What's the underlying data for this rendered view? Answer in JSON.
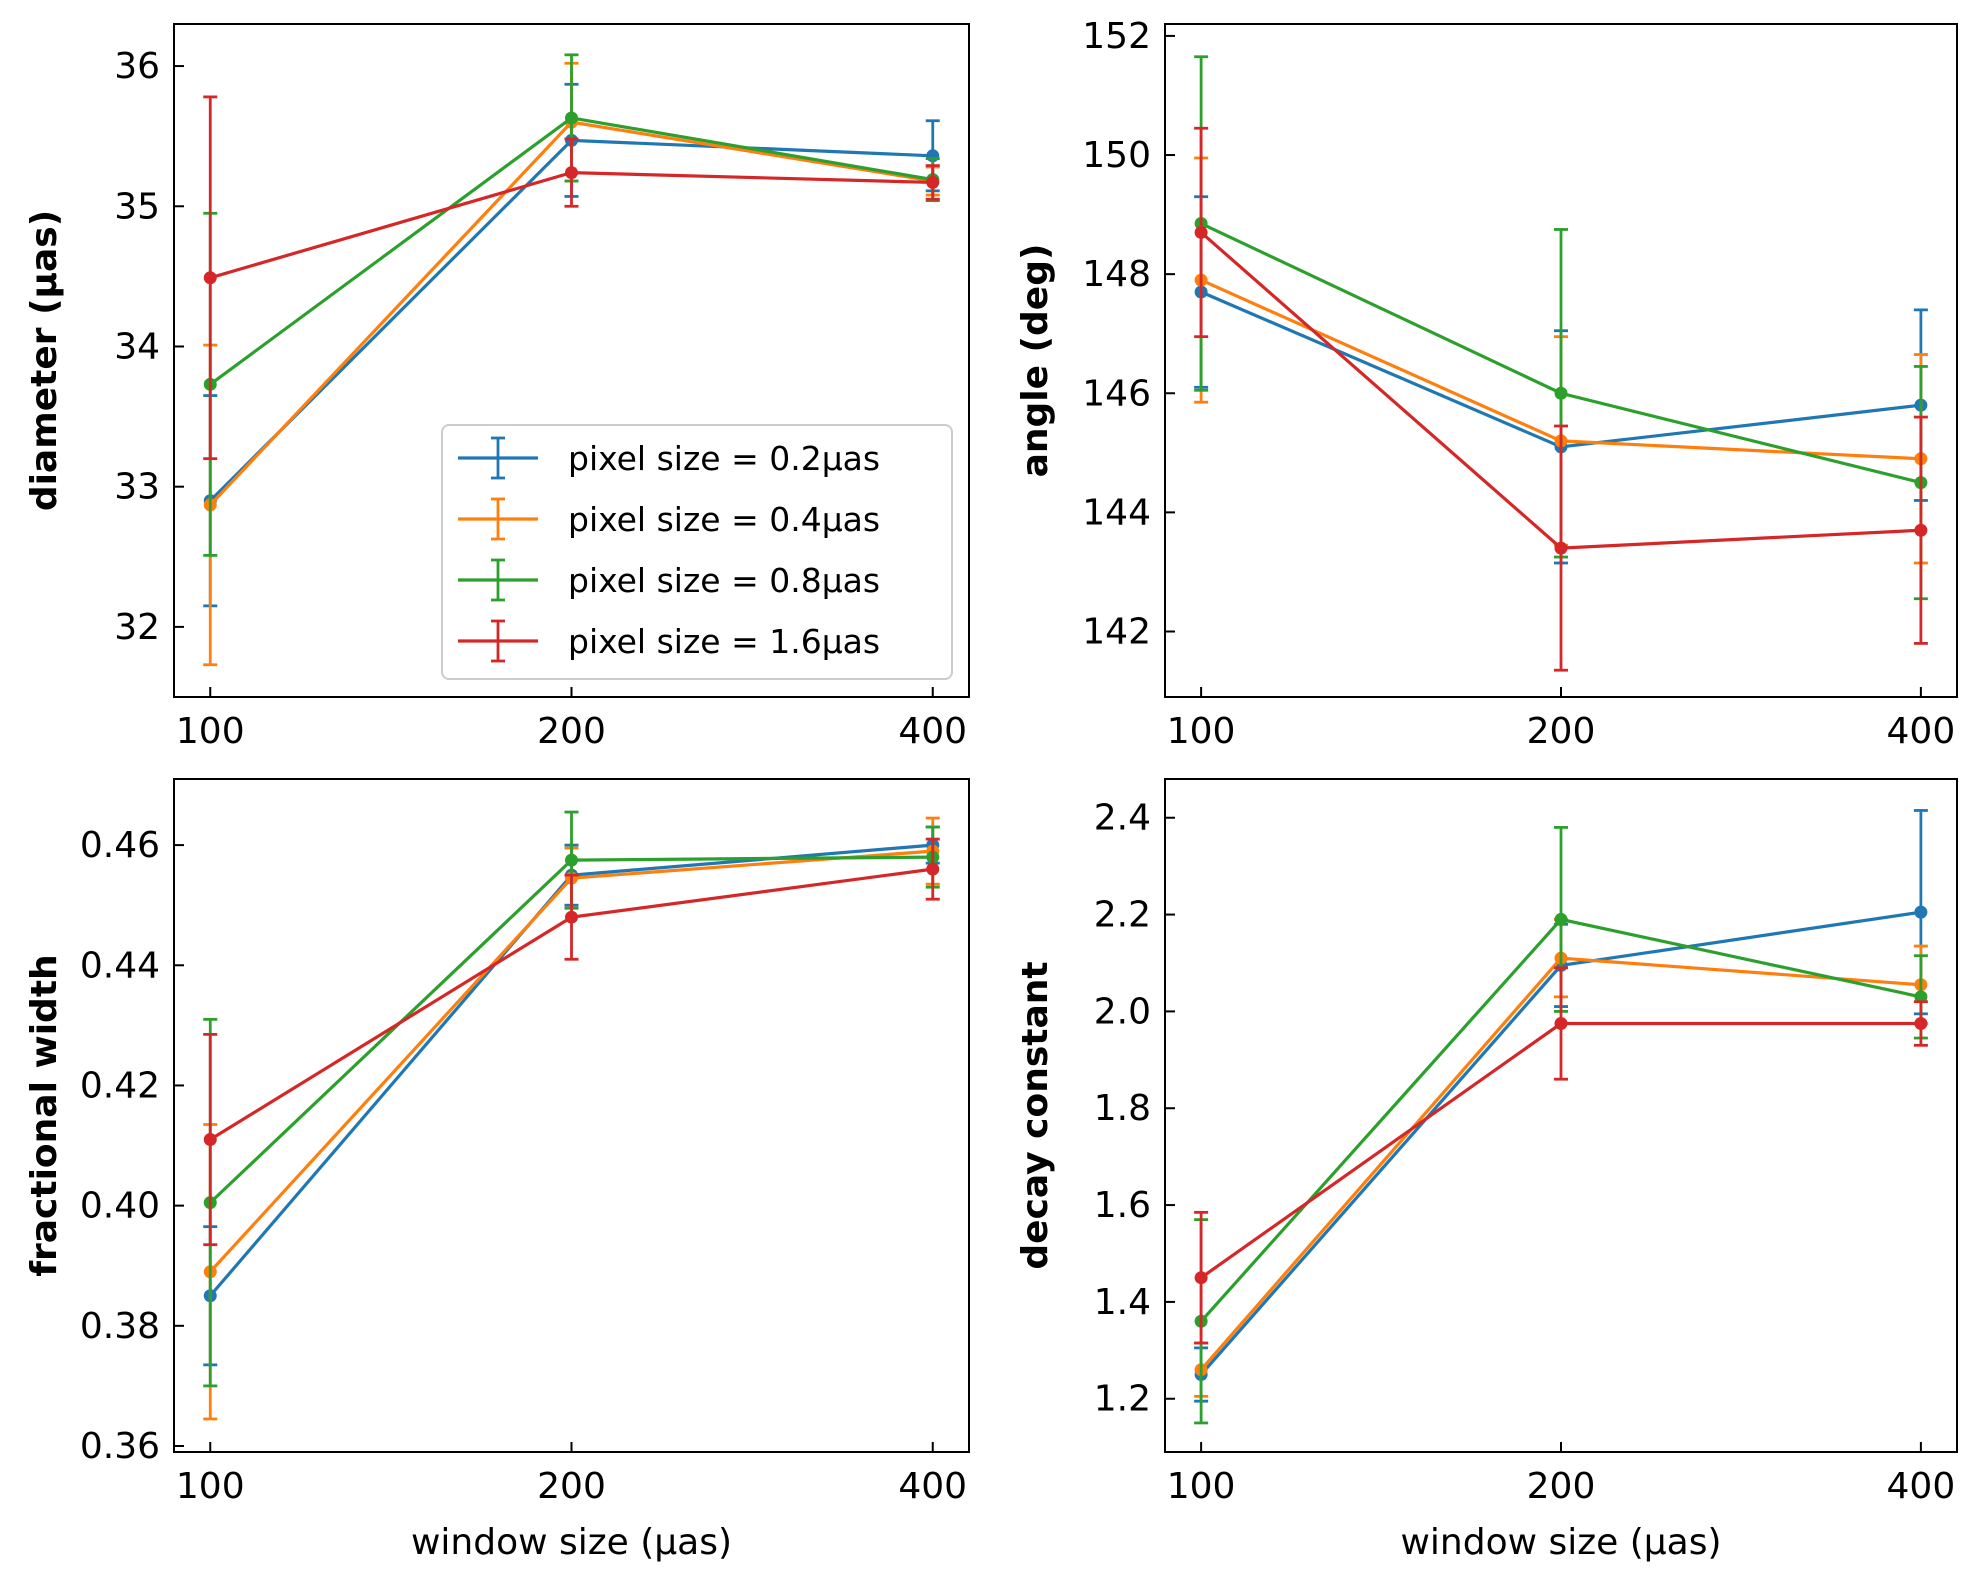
{
  "chart_data": [
    {
      "type": "line",
      "panel": "top-left",
      "ylabel": "diameter (μas)",
      "xlabel": "",
      "categories": [
        "100",
        "200",
        "400"
      ],
      "ylim": [
        31.5,
        36.3
      ],
      "yticks": [
        32,
        33,
        34,
        35,
        36
      ],
      "ytick_labels": [
        "32",
        "33",
        "34",
        "35",
        "36"
      ],
      "grid": false,
      "legend": "lower-right",
      "series": [
        {
          "name": "pixel size = 0.2μas",
          "color": "#1f77b4",
          "values": [
            32.9,
            35.47,
            35.36
          ],
          "errors": [
            0.75,
            0.4,
            0.25
          ]
        },
        {
          "name": "pixel size = 0.4μas",
          "color": "#ff7f0e",
          "values": [
            32.87,
            35.6,
            35.18
          ],
          "errors": [
            1.14,
            0.42,
            0.1
          ]
        },
        {
          "name": "pixel size = 0.8μas",
          "color": "#2ca02c",
          "values": [
            33.73,
            35.63,
            35.19
          ],
          "errors": [
            1.22,
            0.45,
            0.15
          ]
        },
        {
          "name": "pixel size = 1.6μas",
          "color": "#d62728",
          "values": [
            34.49,
            35.24,
            35.17
          ],
          "errors": [
            1.29,
            0.24,
            0.12
          ]
        }
      ]
    },
    {
      "type": "line",
      "panel": "top-right",
      "ylabel": "angle (deg)",
      "xlabel": "",
      "categories": [
        "100",
        "200",
        "400"
      ],
      "ylim": [
        140.9,
        152.2
      ],
      "yticks": [
        142,
        144,
        146,
        148,
        150,
        152
      ],
      "ytick_labels": [
        "142",
        "144",
        "146",
        "148",
        "150",
        "152"
      ],
      "grid": false,
      "series": [
        {
          "name": "pixel size = 0.2μas",
          "color": "#1f77b4",
          "values": [
            147.7,
            145.1,
            145.8
          ],
          "errors": [
            1.6,
            1.95,
            1.6
          ]
        },
        {
          "name": "pixel size = 0.4μas",
          "color": "#ff7f0e",
          "values": [
            147.9,
            145.2,
            144.9
          ],
          "errors": [
            2.05,
            1.75,
            1.75
          ]
        },
        {
          "name": "pixel size = 0.8μas",
          "color": "#2ca02c",
          "values": [
            148.85,
            146.0,
            144.5
          ],
          "errors": [
            2.8,
            2.75,
            1.95
          ]
        },
        {
          "name": "pixel size = 1.6μas",
          "color": "#d62728",
          "values": [
            148.7,
            143.4,
            143.7
          ],
          "errors": [
            1.75,
            2.05,
            1.9
          ]
        }
      ]
    },
    {
      "type": "line",
      "panel": "bottom-left",
      "ylabel": "fractional width",
      "xlabel": "window size (μas)",
      "categories": [
        "100",
        "200",
        "400"
      ],
      "ylim": [
        0.359,
        0.471
      ],
      "yticks": [
        0.36,
        0.38,
        0.4,
        0.42,
        0.44,
        0.46
      ],
      "ytick_labels": [
        "0.36",
        "0.38",
        "0.40",
        "0.42",
        "0.44",
        "0.46"
      ],
      "grid": false,
      "series": [
        {
          "name": "pixel size = 0.2μas",
          "color": "#1f77b4",
          "values": [
            0.385,
            0.455,
            0.46
          ],
          "errors": [
            0.0115,
            0.005,
            0.003
          ]
        },
        {
          "name": "pixel size = 0.4μas",
          "color": "#ff7f0e",
          "values": [
            0.389,
            0.4545,
            0.459
          ],
          "errors": [
            0.0245,
            0.005,
            0.0055
          ]
        },
        {
          "name": "pixel size = 0.8μas",
          "color": "#2ca02c",
          "values": [
            0.4005,
            0.4575,
            0.458
          ],
          "errors": [
            0.0305,
            0.008,
            0.005
          ]
        },
        {
          "name": "pixel size = 1.6μas",
          "color": "#d62728",
          "values": [
            0.411,
            0.448,
            0.456
          ],
          "errors": [
            0.0175,
            0.007,
            0.005
          ]
        }
      ]
    },
    {
      "type": "line",
      "panel": "bottom-right",
      "ylabel": "decay constant",
      "xlabel": "window size (μas)",
      "categories": [
        "100",
        "200",
        "400"
      ],
      "ylim": [
        1.09,
        2.48
      ],
      "yticks": [
        1.2,
        1.4,
        1.6,
        1.8,
        2.0,
        2.2,
        2.4
      ],
      "ytick_labels": [
        "1.2",
        "1.4",
        "1.6",
        "1.8",
        "2.0",
        "2.2",
        "2.4"
      ],
      "grid": false,
      "series": [
        {
          "name": "pixel size = 0.2μas",
          "color": "#1f77b4",
          "values": [
            1.25,
            2.095,
            2.205
          ],
          "errors": [
            0.055,
            0.085,
            0.21
          ]
        },
        {
          "name": "pixel size = 0.4μas",
          "color": "#ff7f0e",
          "values": [
            1.26,
            2.11,
            2.055
          ],
          "errors": [
            0.055,
            0.08,
            0.08
          ]
        },
        {
          "name": "pixel size = 0.8μas",
          "color": "#2ca02c",
          "values": [
            1.36,
            2.19,
            2.03
          ],
          "errors": [
            0.21,
            0.19,
            0.085
          ]
        },
        {
          "name": "pixel size = 1.6μas",
          "color": "#d62728",
          "values": [
            1.45,
            1.975,
            1.975
          ],
          "errors": [
            0.135,
            0.115,
            0.045
          ]
        }
      ]
    }
  ]
}
